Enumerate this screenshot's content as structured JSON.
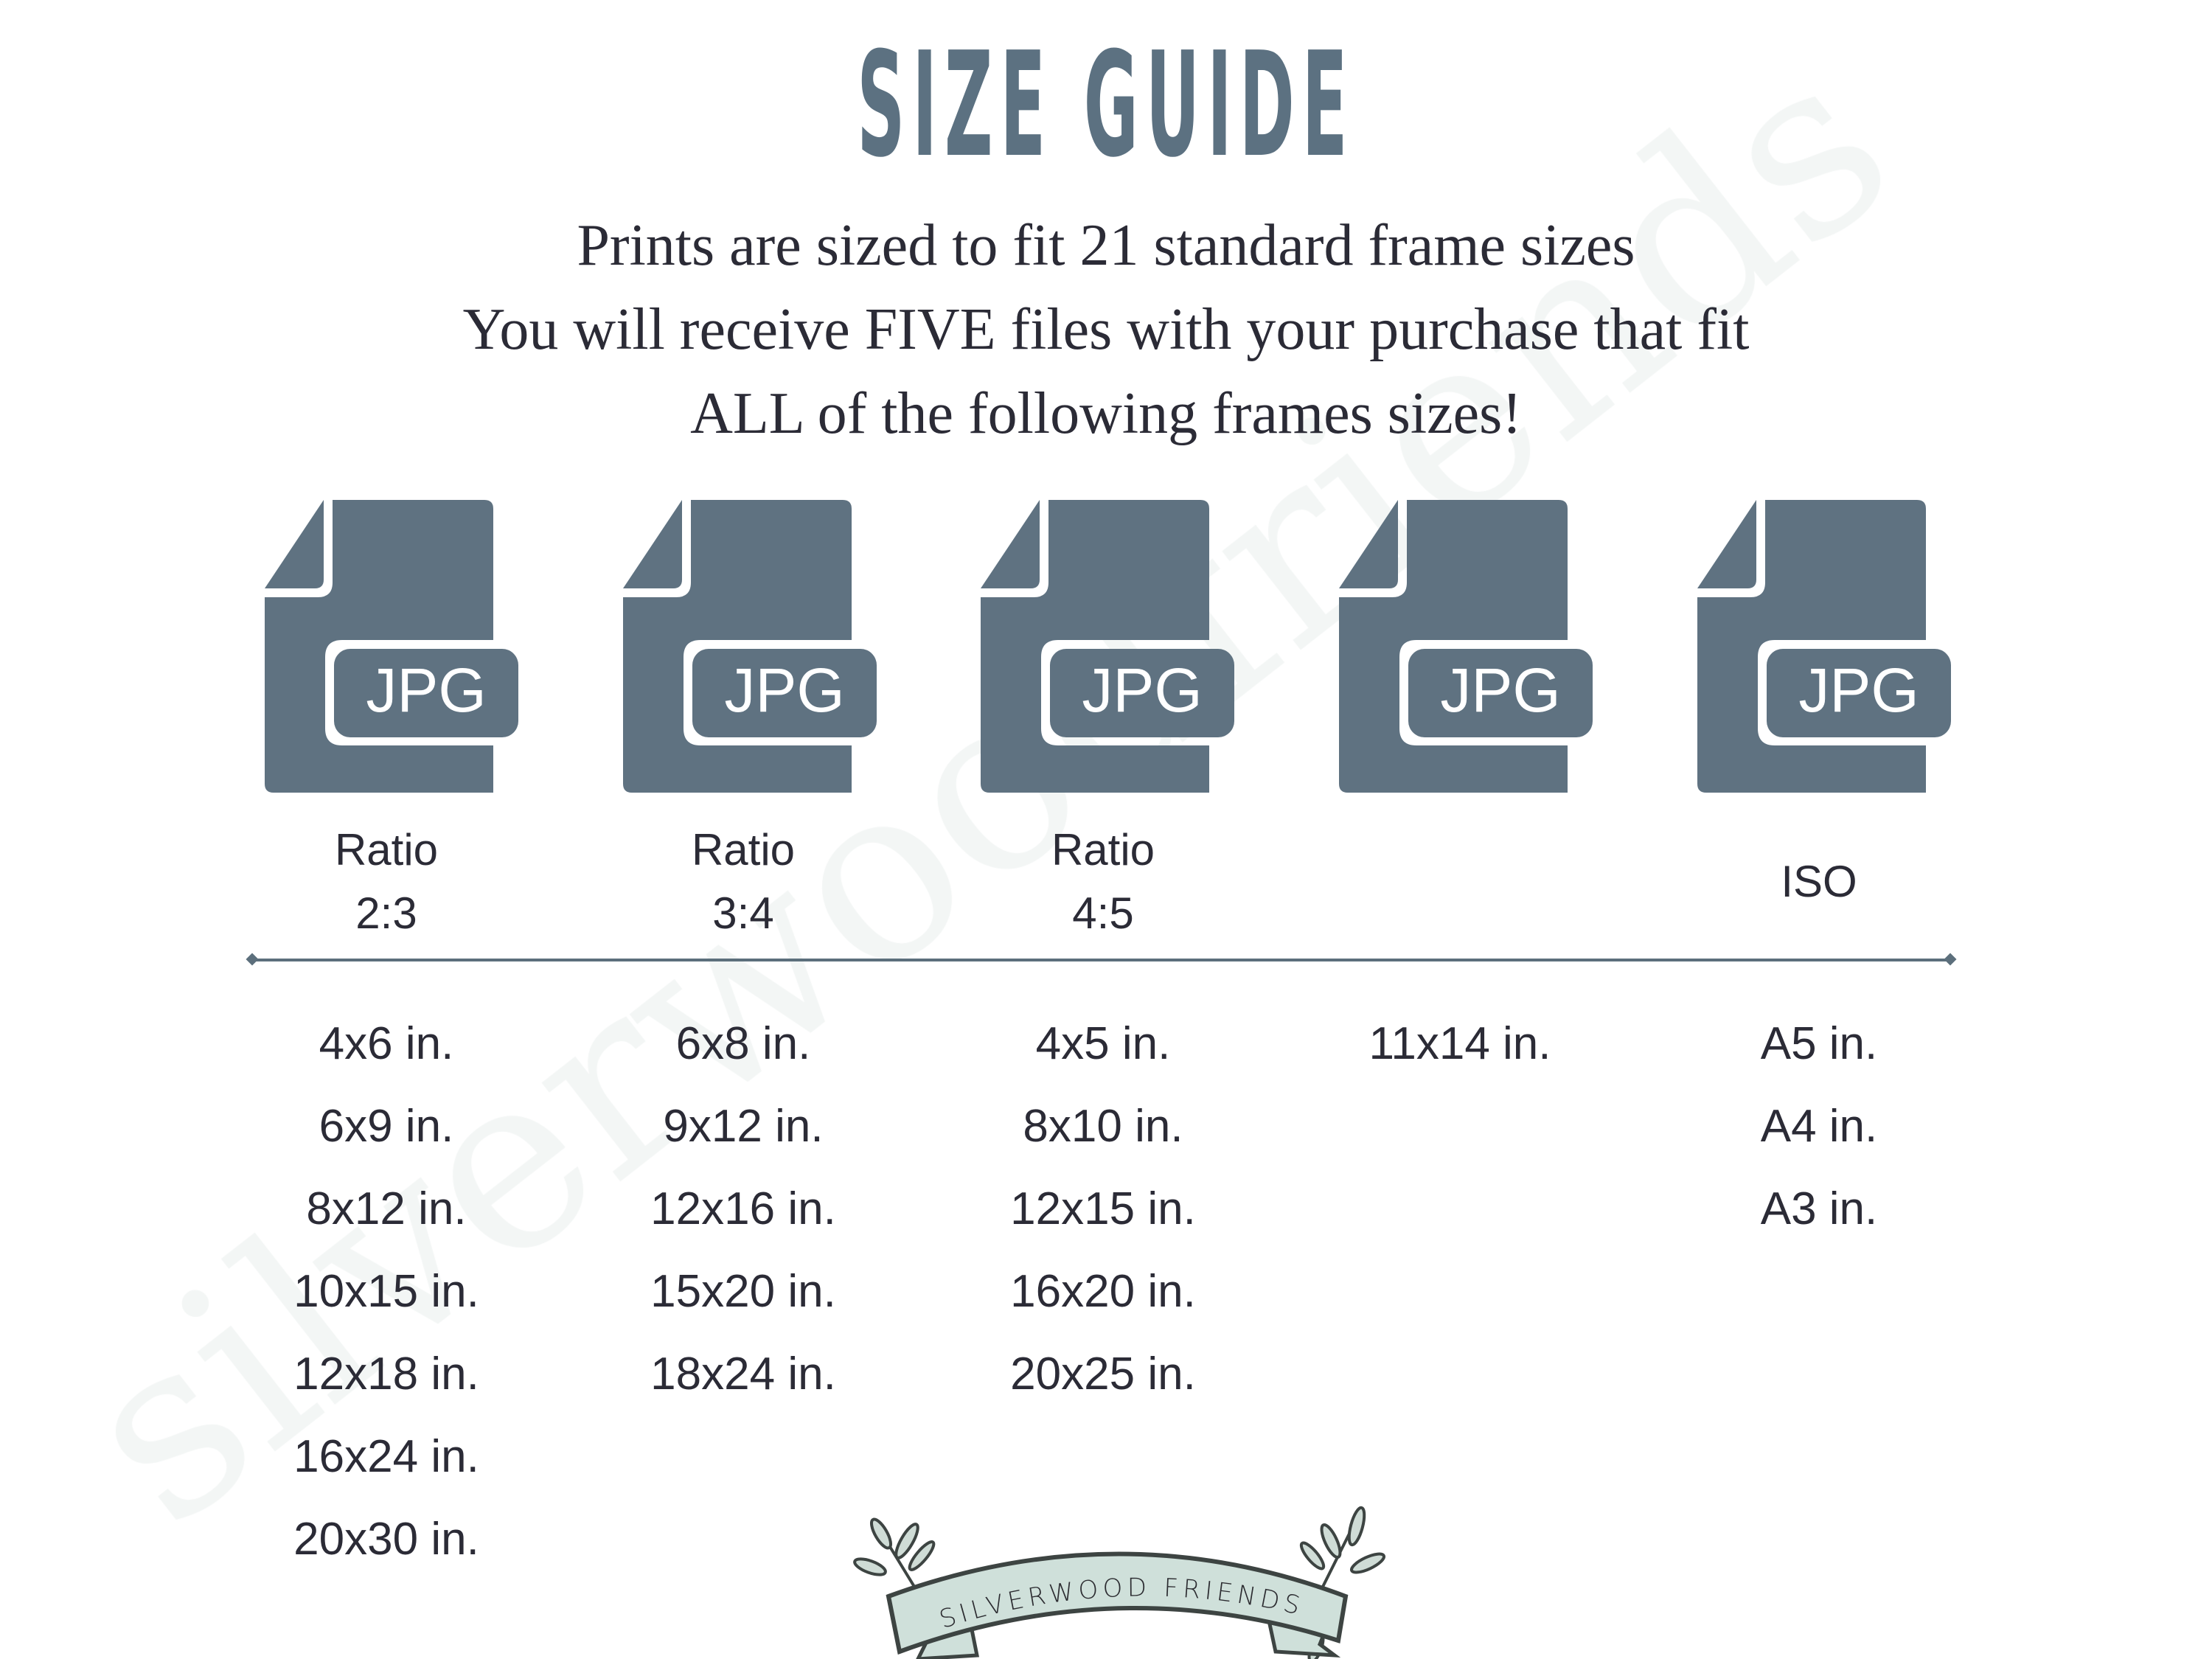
{
  "title": "SIZE GUIDE",
  "subtitle_lines": [
    "Prints are sized to fit 21 standard frame sizes",
    "You will receive FIVE files with your purchase that fit",
    "ALL of the following frames sizes!"
  ],
  "watermark": "silverwoodfriends",
  "colors": {
    "icon": "#5f7281",
    "title": "#5c7181",
    "text": "#2b2b36",
    "banner": "#cfe0da"
  },
  "files": [
    {
      "icon": "jpg-file-icon",
      "badge": "JPG",
      "label_lines": [
        "Ratio",
        "2:3"
      ],
      "sizes": [
        "4x6 in.",
        "6x9 in.",
        "8x12 in.",
        "10x15 in.",
        "12x18 in.",
        "16x24 in.",
        "20x30 in."
      ]
    },
    {
      "icon": "jpg-file-icon",
      "badge": "JPG",
      "label_lines": [
        "Ratio",
        "3:4"
      ],
      "sizes": [
        "6x8 in.",
        "9x12 in.",
        "12x16 in.",
        "15x20 in.",
        "18x24 in."
      ]
    },
    {
      "icon": "jpg-file-icon",
      "badge": "JPG",
      "label_lines": [
        "Ratio",
        "4:5"
      ],
      "sizes": [
        "4x5 in.",
        "8x10 in.",
        "12x15 in.",
        "16x20 in.",
        "20x25 in."
      ]
    },
    {
      "icon": "jpg-file-icon",
      "badge": "JPG",
      "label_lines": [],
      "sizes": [
        "11x14 in."
      ]
    },
    {
      "icon": "jpg-file-icon",
      "badge": "JPG",
      "label_lines": [
        "ISO"
      ],
      "sizes": [
        "A5 in.",
        "A4 in.",
        "A3 in."
      ]
    }
  ],
  "logo": {
    "text": "SILVERWOOD FRIENDS"
  }
}
